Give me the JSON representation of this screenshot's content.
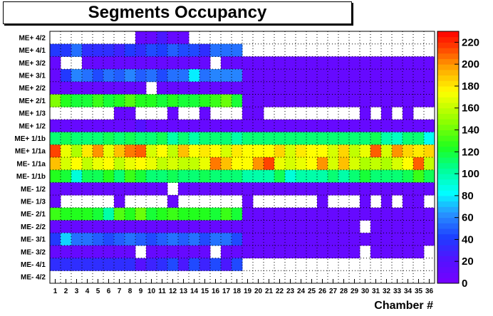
{
  "title": "Segments Occupancy",
  "chart_data": {
    "type": "heatmap",
    "title": "Segments Occupancy",
    "xlabel": "Chamber #",
    "ylabel": "",
    "x_categories": [
      "1",
      "2",
      "3",
      "4",
      "5",
      "6",
      "7",
      "8",
      "9",
      "10",
      "11",
      "12",
      "13",
      "14",
      "15",
      "16",
      "17",
      "18",
      "19",
      "20",
      "21",
      "22",
      "23",
      "24",
      "25",
      "26",
      "27",
      "28",
      "29",
      "30",
      "31",
      "32",
      "33",
      "34",
      "35",
      "36"
    ],
    "y_categories": [
      "ME+ 4/2",
      "ME+ 4/1",
      "ME+ 3/2",
      "ME+ 3/1",
      "ME+ 2/2",
      "ME+ 2/1",
      "ME+ 1/3",
      "ME+ 1/2",
      "ME+ 1/1b",
      "ME+ 1/1a",
      "ME- 1/1a",
      "ME- 1/1b",
      "ME- 1/2",
      "ME- 1/3",
      "ME- 2/1",
      "ME- 2/2",
      "ME- 3/1",
      "ME- 3/2",
      "ME- 4/1",
      "ME- 4/2"
    ],
    "zlim": [
      0,
      230
    ],
    "z_ticks": [
      "0",
      "20",
      "40",
      "60",
      "80",
      "100",
      "120",
      "140",
      "160",
      "180",
      "200",
      "220"
    ],
    "grid": true,
    "values": [
      [
        null,
        null,
        null,
        null,
        null,
        null,
        null,
        null,
        10,
        10,
        25,
        10,
        10,
        null,
        null,
        null,
        null,
        null,
        null,
        null,
        null,
        null,
        null,
        null,
        null,
        null,
        null,
        null,
        null,
        null,
        null,
        null,
        null,
        null,
        null,
        null
      ],
      [
        40,
        40,
        55,
        35,
        35,
        35,
        30,
        40,
        35,
        45,
        42,
        50,
        45,
        45,
        35,
        55,
        55,
        55,
        null,
        null,
        null,
        null,
        null,
        null,
        null,
        null,
        null,
        null,
        null,
        null,
        null,
        null,
        null,
        null,
        null,
        null
      ],
      [
        10,
        null,
        null,
        10,
        10,
        10,
        10,
        10,
        10,
        10,
        10,
        10,
        10,
        10,
        10,
        null,
        10,
        10,
        10,
        10,
        10,
        10,
        10,
        10,
        10,
        10,
        10,
        10,
        10,
        10,
        10,
        10,
        10,
        10,
        10,
        10
      ],
      [
        10,
        40,
        60,
        55,
        45,
        55,
        50,
        60,
        50,
        55,
        45,
        55,
        55,
        80,
        55,
        60,
        60,
        60,
        10,
        10,
        10,
        10,
        10,
        10,
        10,
        10,
        10,
        10,
        10,
        10,
        10,
        10,
        10,
        10,
        10,
        10
      ],
      [
        10,
        10,
        10,
        10,
        10,
        10,
        10,
        10,
        10,
        null,
        10,
        10,
        10,
        10,
        10,
        10,
        10,
        10,
        10,
        10,
        10,
        10,
        10,
        10,
        10,
        10,
        10,
        10,
        10,
        10,
        10,
        10,
        10,
        10,
        10,
        10
      ],
      [
        145,
        125,
        120,
        120,
        130,
        120,
        125,
        135,
        125,
        125,
        120,
        125,
        120,
        120,
        125,
        130,
        140,
        120,
        10,
        10,
        10,
        10,
        10,
        10,
        10,
        10,
        10,
        10,
        10,
        10,
        10,
        10,
        10,
        10,
        10,
        10
      ],
      [
        null,
        null,
        null,
        null,
        null,
        null,
        10,
        10,
        null,
        null,
        null,
        10,
        null,
        null,
        10,
        null,
        null,
        null,
        10,
        10,
        null,
        null,
        null,
        null,
        null,
        null,
        null,
        null,
        null,
        10,
        null,
        10,
        null,
        10,
        null,
        null
      ],
      [
        10,
        10,
        10,
        10,
        10,
        10,
        10,
        10,
        20,
        10,
        10,
        10,
        10,
        10,
        10,
        10,
        10,
        10,
        10,
        10,
        10,
        10,
        10,
        10,
        10,
        10,
        10,
        10,
        10,
        10,
        10,
        10,
        10,
        10,
        10,
        10
      ],
      [
        110,
        115,
        110,
        110,
        110,
        115,
        110,
        115,
        110,
        110,
        115,
        100,
        110,
        100,
        110,
        110,
        110,
        100,
        110,
        110,
        110,
        110,
        110,
        110,
        110,
        110,
        110,
        110,
        110,
        110,
        115,
        100,
        95,
        110,
        110,
        85
      ],
      [
        215,
        170,
        155,
        180,
        200,
        170,
        190,
        205,
        210,
        165,
        175,
        160,
        190,
        175,
        180,
        175,
        165,
        180,
        175,
        175,
        175,
        185,
        165,
        180,
        175,
        175,
        165,
        185,
        160,
        170,
        210,
        165,
        200,
        185,
        180,
        185
      ],
      [
        190,
        165,
        175,
        160,
        170,
        175,
        160,
        170,
        175,
        170,
        160,
        165,
        160,
        160,
        170,
        205,
        190,
        175,
        175,
        200,
        215,
        170,
        165,
        170,
        175,
        200,
        165,
        190,
        165,
        155,
        160,
        155,
        165,
        175,
        210,
        160
      ],
      [
        125,
        120,
        90,
        115,
        115,
        125,
        110,
        130,
        120,
        110,
        110,
        115,
        110,
        110,
        115,
        110,
        110,
        110,
        100,
        100,
        100,
        115,
        90,
        100,
        100,
        100,
        110,
        100,
        110,
        120,
        110,
        110,
        110,
        115,
        130,
        115
      ],
      [
        10,
        10,
        10,
        10,
        10,
        10,
        10,
        10,
        10,
        10,
        10,
        null,
        10,
        10,
        10,
        10,
        10,
        10,
        10,
        10,
        10,
        10,
        10,
        10,
        10,
        10,
        10,
        10,
        10,
        10,
        10,
        10,
        10,
        10,
        10,
        10
      ],
      [
        10,
        null,
        null,
        null,
        null,
        null,
        10,
        null,
        null,
        null,
        null,
        10,
        null,
        null,
        null,
        null,
        null,
        null,
        10,
        null,
        null,
        null,
        null,
        null,
        null,
        10,
        null,
        null,
        null,
        10,
        null,
        10,
        null,
        10,
        10,
        null
      ],
      [
        130,
        125,
        125,
        125,
        120,
        100,
        135,
        125,
        140,
        120,
        125,
        130,
        125,
        125,
        125,
        120,
        130,
        120,
        10,
        10,
        10,
        10,
        10,
        10,
        10,
        10,
        10,
        10,
        10,
        10,
        10,
        10,
        10,
        10,
        10,
        10
      ],
      [
        10,
        10,
        10,
        10,
        10,
        10,
        10,
        10,
        10,
        10,
        10,
        10,
        10,
        10,
        10,
        10,
        10,
        10,
        10,
        10,
        10,
        10,
        10,
        10,
        10,
        10,
        10,
        10,
        10,
        null,
        10,
        10,
        10,
        10,
        10,
        10
      ],
      [
        40,
        75,
        55,
        55,
        50,
        45,
        50,
        55,
        50,
        45,
        50,
        55,
        50,
        55,
        45,
        55,
        55,
        45,
        10,
        10,
        10,
        10,
        10,
        10,
        10,
        10,
        10,
        10,
        10,
        10,
        10,
        10,
        10,
        10,
        10,
        10
      ],
      [
        10,
        10,
        10,
        10,
        10,
        10,
        10,
        10,
        null,
        10,
        10,
        10,
        10,
        10,
        10,
        null,
        10,
        10,
        10,
        10,
        10,
        10,
        10,
        10,
        10,
        10,
        10,
        10,
        10,
        null,
        10,
        10,
        10,
        10,
        10,
        null
      ],
      [
        35,
        35,
        35,
        35,
        35,
        35,
        35,
        35,
        20,
        30,
        35,
        45,
        25,
        45,
        30,
        45,
        25,
        45,
        null,
        null,
        null,
        null,
        null,
        null,
        null,
        null,
        null,
        null,
        null,
        null,
        null,
        null,
        null,
        null,
        null,
        null
      ],
      [
        null,
        null,
        null,
        null,
        null,
        null,
        null,
        null,
        null,
        null,
        null,
        null,
        null,
        null,
        null,
        null,
        null,
        null,
        null,
        null,
        null,
        null,
        null,
        null,
        null,
        null,
        null,
        null,
        null,
        null,
        null,
        null,
        null,
        null,
        null,
        null
      ]
    ]
  }
}
